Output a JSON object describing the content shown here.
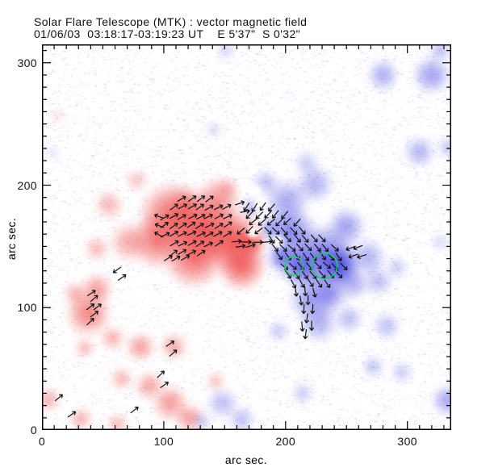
{
  "chart_data": {
    "type": "heatmap",
    "title": "Solar Flare Telescope (MTK) : vector magnetic field",
    "subtitle": "01/06/03  03:18:17-03:19:23 UT    E 5'37\"  S 0'32\"",
    "xlabel": "arc sec.",
    "ylabel": "arc sec.",
    "xlim": [
      0,
      336
    ],
    "ylim": [
      0,
      315
    ],
    "x_major_ticks": [
      0,
      100,
      200,
      300
    ],
    "y_major_ticks": [
      0,
      100,
      200,
      300
    ],
    "minor_tick_step": 10,
    "grid": "off",
    "legend": "none",
    "colors": {
      "red_polarity": "#ee4040",
      "blue_polarity": "#4040e0",
      "vector_stroke": "#111111",
      "highlight_circle": "#22cc66",
      "frame": "#000000"
    },
    "green_circles": [
      {
        "x": 207,
        "y": 134,
        "r": 7.5
      },
      {
        "x": 232,
        "y": 134,
        "r": 10.5
      }
    ],
    "red_regions": [
      [
        108,
        174,
        30,
        0.85
      ],
      [
        134,
        164,
        30,
        0.9
      ],
      [
        158,
        154,
        26,
        0.9
      ],
      [
        125,
        141,
        26,
        0.8
      ],
      [
        95,
        154,
        23,
        0.7
      ],
      [
        144,
        187,
        20,
        0.55
      ],
      [
        164,
        134,
        21,
        0.85
      ],
      [
        171,
        154,
        12,
        0.9
      ],
      [
        72,
        154,
        17,
        0.5
      ],
      [
        55,
        184,
        12,
        0.45
      ],
      [
        78,
        204,
        9,
        0.4
      ],
      [
        45,
        148,
        10,
        0.45
      ],
      [
        38,
        95,
        19,
        0.7
      ],
      [
        45,
        115,
        13,
        0.6
      ],
      [
        28,
        111,
        10,
        0.5
      ],
      [
        58,
        75,
        10,
        0.5
      ],
      [
        35,
        67,
        8,
        0.5
      ],
      [
        81,
        68,
        12,
        0.6
      ],
      [
        108,
        68,
        11,
        0.55
      ],
      [
        65,
        42,
        9,
        0.5
      ],
      [
        88,
        36,
        12,
        0.55
      ],
      [
        105,
        22,
        15,
        0.6
      ],
      [
        121,
        10,
        12,
        0.6
      ],
      [
        143,
        40,
        7,
        0.5
      ],
      [
        12,
        257,
        5,
        0.3
      ],
      [
        5,
        25,
        10,
        0.5
      ],
      [
        32,
        9,
        9,
        0.55
      ],
      [
        62,
        5,
        8,
        0.5
      ],
      [
        152,
        197,
        10,
        0.4
      ],
      [
        118,
        185,
        12,
        0.5
      ]
    ],
    "blue_regions": [
      [
        201,
        187,
        19,
        0.5
      ],
      [
        184,
        202,
        11,
        0.4
      ],
      [
        224,
        201,
        16,
        0.45
      ],
      [
        204,
        161,
        22,
        0.7
      ],
      [
        231,
        141,
        28,
        0.8
      ],
      [
        244,
        134,
        17,
        0.95
      ],
      [
        211,
        134,
        17,
        0.85
      ],
      [
        224,
        108,
        22,
        0.6
      ],
      [
        250,
        166,
        16,
        0.55
      ],
      [
        267,
        141,
        16,
        0.45
      ],
      [
        197,
        141,
        12,
        0.8
      ],
      [
        187,
        166,
        9,
        0.55
      ],
      [
        172,
        182,
        8,
        0.5
      ],
      [
        227,
        87,
        16,
        0.45
      ],
      [
        252,
        91,
        12,
        0.4
      ],
      [
        276,
        121,
        12,
        0.4
      ],
      [
        291,
        133,
        9,
        0.35
      ],
      [
        280,
        290,
        13,
        0.5
      ],
      [
        320,
        290,
        16,
        0.55
      ],
      [
        327,
        310,
        9,
        0.45
      ],
      [
        310,
        227,
        13,
        0.45
      ],
      [
        334,
        231,
        9,
        0.4
      ],
      [
        333,
        24,
        13,
        0.55
      ],
      [
        327,
        154,
        7,
        0.3
      ],
      [
        194,
        81,
        9,
        0.35
      ],
      [
        283,
        85,
        11,
        0.4
      ],
      [
        272,
        52,
        9,
        0.4
      ],
      [
        295,
        47,
        9,
        0.35
      ],
      [
        214,
        30,
        9,
        0.35
      ],
      [
        148,
        22,
        13,
        0.4
      ],
      [
        164,
        9,
        11,
        0.4
      ],
      [
        131,
        7,
        8,
        0.35
      ],
      [
        151,
        310,
        7,
        0.35
      ],
      [
        141,
        245,
        6,
        0.3
      ],
      [
        9,
        227,
        5,
        0.3
      ],
      [
        217,
        218,
        10,
        0.35
      ],
      [
        255,
        120,
        14,
        0.5
      ],
      [
        238,
        112,
        14,
        0.5
      ]
    ],
    "white_gaps": [
      [
        173,
        162,
        5
      ],
      [
        179,
        184,
        5
      ],
      [
        194,
        154,
        5
      ],
      [
        175,
        195,
        5
      ]
    ],
    "vector_rows": [
      {
        "y": 189,
        "xs": [
          115,
          123,
          130,
          137
        ],
        "a": 35
      },
      {
        "y": 182,
        "xs": [
          108,
          115,
          123,
          130,
          137,
          145,
          152
        ],
        "a": 32
      },
      {
        "y": 174,
        "xs": [
          101,
          108,
          115,
          123,
          130,
          137,
          145,
          152
        ],
        "a": 30
      },
      {
        "y": 167,
        "xs": [
          101,
          108,
          115,
          123,
          130,
          137,
          145,
          152
        ],
        "a": 30
      },
      {
        "y": 160,
        "xs": [
          101,
          108,
          115,
          123,
          130,
          137,
          145,
          152
        ],
        "a": 28
      },
      {
        "y": 152,
        "xs": [
          108,
          115,
          123,
          130,
          137,
          145
        ],
        "a": 30
      },
      {
        "y": 145,
        "xs": [
          108,
          115,
          123,
          130
        ],
        "a": 33
      },
      {
        "y": 140,
        "xs": [
          103,
          110,
          117
        ],
        "a": 35
      },
      {
        "y": 174,
        "xs": [
          96
        ],
        "a": 155
      },
      {
        "y": 167,
        "xs": [
          96
        ],
        "a": 160
      },
      {
        "y": 160,
        "xs": [
          96
        ],
        "a": 150
      },
      {
        "y": 154,
        "xs": [
          160,
          168,
          177,
          185
        ],
        "a": 5
      },
      {
        "y": 150,
        "xs": [
          163,
          171
        ],
        "a": 12
      },
      {
        "y": 185,
        "xs": [
          162
        ],
        "a": 22
      },
      {
        "y": 179,
        "xs": [
          167
        ],
        "a": 10
      },
      {
        "y": 112,
        "xs": [
          40
        ],
        "a": 38
      },
      {
        "y": 107,
        "xs": [
          43
        ],
        "a": 38
      },
      {
        "y": 100,
        "xs": [
          40,
          46
        ],
        "a": 38
      },
      {
        "y": 95,
        "xs": [
          43
        ],
        "a": 38
      },
      {
        "y": 88,
        "xs": [
          40
        ],
        "a": 38
      },
      {
        "y": 71,
        "xs": [
          105
        ],
        "a": 38
      },
      {
        "y": 63,
        "xs": [
          108
        ],
        "a": 38
      },
      {
        "y": 45,
        "xs": [
          97
        ],
        "a": 40
      },
      {
        "y": 37,
        "xs": [
          100
        ],
        "a": 40
      },
      {
        "y": 16,
        "xs": [
          76
        ],
        "a": 35
      },
      {
        "y": 27,
        "xs": [
          14
        ],
        "a": 35
      },
      {
        "y": 13,
        "xs": [
          25
        ],
        "a": 35
      },
      {
        "y": 131,
        "xs": [
          62
        ],
        "a": 215
      },
      {
        "y": 124,
        "xs": [
          66
        ],
        "a": 35
      },
      {
        "y": 182,
        "xs": [
          168,
          175,
          182,
          189
        ],
        "a": 235
      },
      {
        "y": 176,
        "xs": [
          171,
          178,
          185,
          192,
          199
        ],
        "a": 230
      },
      {
        "y": 170,
        "xs": [
          174,
          181,
          188,
          195,
          202,
          209
        ],
        "a": 225
      },
      {
        "y": 163,
        "xs": [
          164,
          171,
          178
        ],
        "a": 220
      },
      {
        "y": 163,
        "xs": [
          185,
          192,
          199,
          206,
          213
        ],
        "a": 315
      },
      {
        "y": 156,
        "xs": [
          188,
          195,
          202,
          209,
          216,
          223,
          230
        ],
        "a": 310
      },
      {
        "y": 149,
        "xs": [
          191,
          198,
          205,
          212,
          219,
          226,
          233,
          240
        ],
        "a": 315
      },
      {
        "y": 142,
        "xs": [
          195,
          202,
          209,
          216,
          223,
          230,
          237,
          244
        ],
        "a": 310
      },
      {
        "y": 134,
        "xs": [
          199,
          206,
          213,
          220,
          227,
          234,
          241,
          248
        ],
        "a": 315
      },
      {
        "y": 127,
        "xs": [
          202,
          209,
          216,
          223,
          230,
          237,
          244
        ],
        "a": 310
      },
      {
        "y": 120,
        "xs": [
          206,
          213,
          220,
          227,
          234
        ],
        "a": 300
      },
      {
        "y": 149,
        "xs": [
          253,
          260
        ],
        "a": 200
      },
      {
        "y": 142,
        "xs": [
          256,
          263
        ],
        "a": 195
      },
      {
        "y": 113,
        "xs": [
          209,
          216,
          223
        ],
        "a": 280
      },
      {
        "y": 106,
        "xs": [
          212,
          219
        ],
        "a": 275
      },
      {
        "y": 99,
        "xs": [
          215,
          222
        ],
        "a": 270
      },
      {
        "y": 92,
        "xs": [
          218
        ],
        "a": 265
      },
      {
        "y": 85,
        "xs": [
          214,
          221
        ],
        "a": 270
      },
      {
        "y": 78,
        "xs": [
          217
        ],
        "a": 265
      }
    ]
  }
}
